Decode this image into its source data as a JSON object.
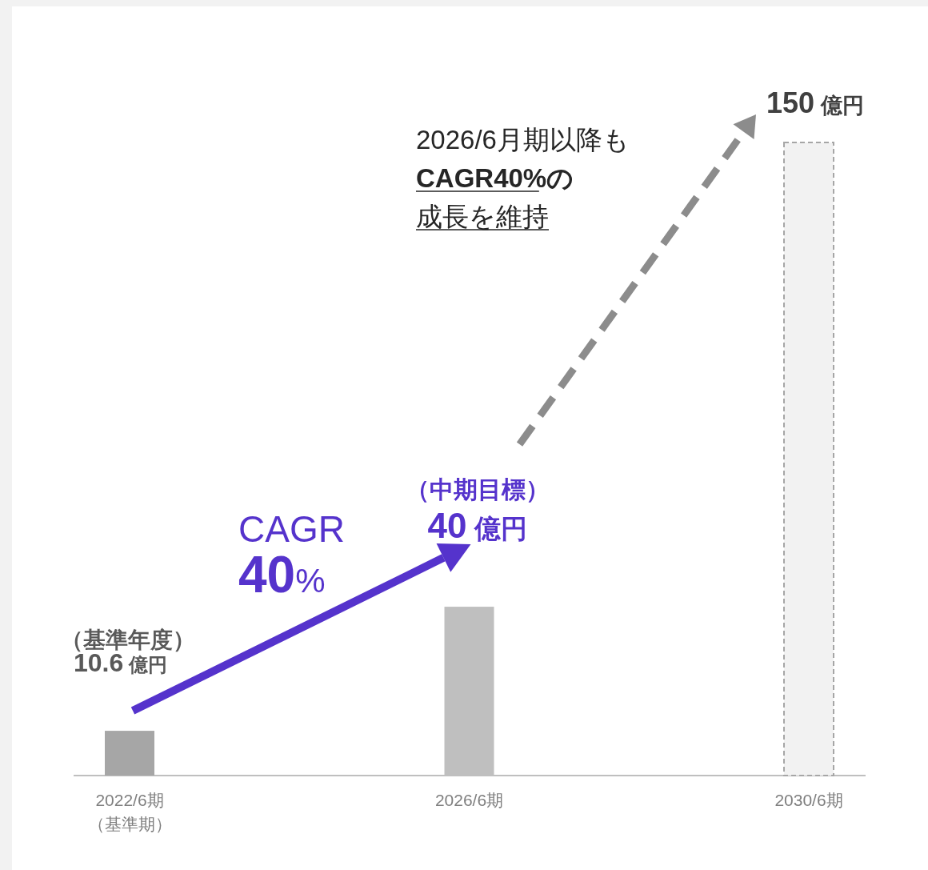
{
  "chart_data": {
    "type": "bar",
    "categories": [
      "2022/6期",
      "2026/6期",
      "2030/6期"
    ],
    "values": [
      10.6,
      40,
      150
    ],
    "colors": [
      "#a6a6a6",
      "#bfbfbf",
      "#f2f2f2"
    ],
    "value_labels": [
      "10.6 億円",
      "40 億円",
      "150 億円"
    ],
    "annotations": [
      "（基準年度）",
      "（中期目標）",
      "CAGR",
      "40%",
      "2026/6月期以降も",
      "CAGR40%の",
      "成長を維持",
      "（基準期）"
    ]
  }
}
